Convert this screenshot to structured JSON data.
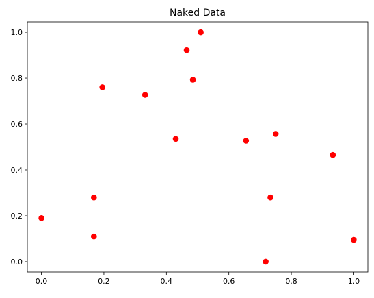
{
  "chart_data": {
    "type": "scatter",
    "title": "Naked Data",
    "xlabel": "",
    "ylabel": "",
    "xlim": [
      -0.045,
      1.045
    ],
    "ylim": [
      -0.045,
      1.045
    ],
    "xticks": [
      0.0,
      0.2,
      0.4,
      0.6,
      0.8,
      1.0
    ],
    "yticks": [
      0.0,
      0.2,
      0.4,
      0.6,
      0.8,
      1.0
    ],
    "xtick_labels": [
      "0.0",
      "0.2",
      "0.4",
      "0.6",
      "0.8",
      "1.0"
    ],
    "ytick_labels": [
      "0.0",
      "0.2",
      "0.4",
      "0.6",
      "0.8",
      "1.0"
    ],
    "grid": false,
    "marker_color": "#ff0000",
    "series": [
      {
        "x": [
          0.0,
          0.168,
          0.168,
          0.195,
          0.332,
          0.43,
          0.465,
          0.485,
          0.51,
          0.655,
          0.718,
          0.733,
          0.75,
          0.933,
          1.0
        ],
        "y": [
          0.19,
          0.28,
          0.11,
          0.76,
          0.727,
          0.535,
          0.922,
          0.793,
          1.0,
          0.527,
          0.0,
          0.28,
          0.557,
          0.465,
          0.095
        ]
      }
    ]
  }
}
